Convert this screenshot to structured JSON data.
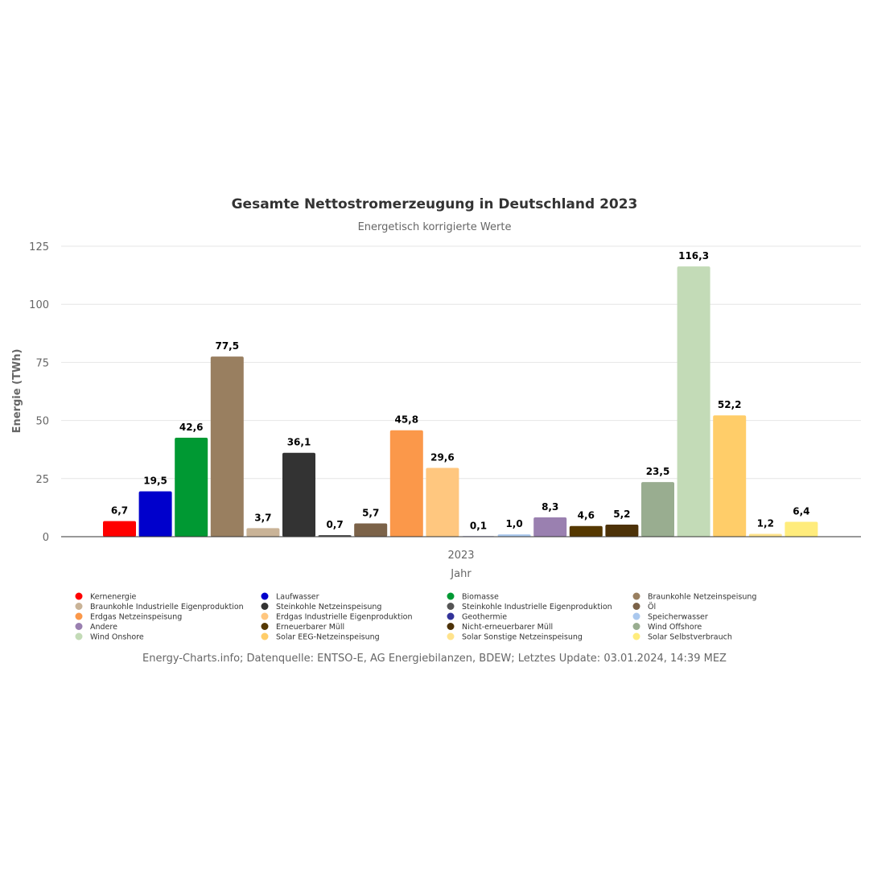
{
  "chart_data": {
    "type": "bar",
    "title": "Gesamte Nettostromerzeugung in Deutschland 2023",
    "subtitle": "Energetisch korrigierte Werte",
    "xlabel": "Jahr",
    "ylabel": "Energie (TWh)",
    "categories": [
      "2023"
    ],
    "ylim": [
      0,
      125
    ],
    "yticks": [
      0,
      25,
      50,
      75,
      100,
      125
    ],
    "grid": true,
    "legend_position": "bottom",
    "series": [
      {
        "name": "Kernenergie",
        "value": 6.7,
        "label": "6,7",
        "color": "#ff0000"
      },
      {
        "name": "Laufwasser",
        "value": 19.5,
        "label": "19,5",
        "color": "#0000cc"
      },
      {
        "name": "Biomasse",
        "value": 42.6,
        "label": "42,6",
        "color": "#009933"
      },
      {
        "name": "Braunkohle Netzeinspeisung",
        "value": 77.5,
        "label": "77,5",
        "color": "#997f60"
      },
      {
        "name": "Braunkohle Industrielle Eigenproduktion",
        "value": 3.7,
        "label": "3,7",
        "color": "#c9b397"
      },
      {
        "name": "Steinkohle Netzeinspeisung",
        "value": 36.1,
        "label": "36,1",
        "color": "#333333"
      },
      {
        "name": "Steinkohle Industrielle Eigenproduktion",
        "value": 0.7,
        "label": "0,7",
        "color": "#555555"
      },
      {
        "name": "Öl",
        "value": 5.7,
        "label": "5,7",
        "color": "#7b6248"
      },
      {
        "name": "Erdgas Netzeinspeisung",
        "value": 45.8,
        "label": "45,8",
        "color": "#fb984a"
      },
      {
        "name": "Erdgas Industrielle Eigenproduktion",
        "value": 29.6,
        "label": "29,6",
        "color": "#ffc77f"
      },
      {
        "name": "Geothermie",
        "value": 0.1,
        "label": "0,1",
        "color": "#333399"
      },
      {
        "name": "Speicherwasser",
        "value": 1.0,
        "label": "1,0",
        "color": "#aac8ee"
      },
      {
        "name": "Andere",
        "value": 8.3,
        "label": "8,3",
        "color": "#9a80b0"
      },
      {
        "name": "Erneuerbarer Müll",
        "value": 4.6,
        "label": "4,6",
        "color": "#553800"
      },
      {
        "name": "Nicht-erneuerbarer Müll",
        "value": 5.2,
        "label": "5,2",
        "color": "#4d3208"
      },
      {
        "name": "Wind Offshore",
        "value": 23.5,
        "label": "23,5",
        "color": "#99ad90"
      },
      {
        "name": "Wind Onshore",
        "value": 116.3,
        "label": "116,3",
        "color": "#c3dbb7"
      },
      {
        "name": "Solar EEG-Netzeinspeisung",
        "value": 52.2,
        "label": "52,2",
        "color": "#ffcd69"
      },
      {
        "name": "Solar Sonstige Netzeinspeisung",
        "value": 1.2,
        "label": "1,2",
        "color": "#ffe38c"
      },
      {
        "name": "Solar Selbstverbrauch",
        "value": 6.4,
        "label": "6,4",
        "color": "#ffec7c"
      }
    ]
  },
  "credits": "Energy-Charts.info; Datenquelle: ENTSO-E, AG Energiebilanzen, BDEW; Letztes Update: 03.01.2024, 14:39 MEZ"
}
